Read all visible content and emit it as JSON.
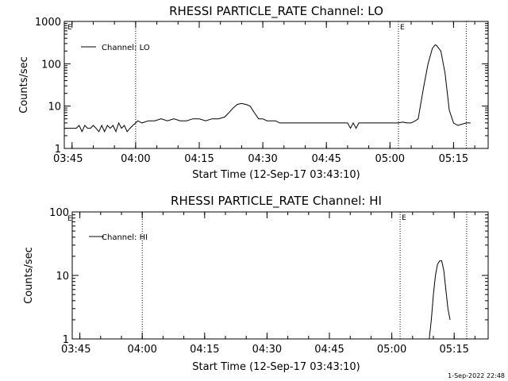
{
  "chart_data": [
    {
      "type": "line",
      "title": "RHESSI PARTICLE_RATE Channel: LO",
      "xlabel": "Start Time (12-Sep-17 03:43:10)",
      "ylabel": "Counts/sec",
      "y_scale": "log",
      "ylim": [
        1,
        1000
      ],
      "xlim": [
        "03:43:10",
        "05:23:10"
      ],
      "x_ticks": [
        "03:45",
        "04:00",
        "04:15",
        "04:30",
        "04:45",
        "05:00",
        "05:15"
      ],
      "y_ticks": [
        "1",
        "10",
        "100",
        "1000"
      ],
      "legend": "top-left",
      "event_markers": [
        {
          "time": "04:00",
          "label": ""
        },
        {
          "time": "05:02",
          "label": "E"
        },
        {
          "time": "05:18",
          "label": ""
        }
      ],
      "corner_label": "E",
      "series": [
        {
          "name": "Channel: LO",
          "x": [
            "03:43:10",
            "03:46",
            "03:46:40",
            "03:47:20",
            "03:48",
            "03:48:40",
            "03:49:20",
            "03:50",
            "03:50:40",
            "03:51:20",
            "03:52",
            "03:52:40",
            "03:53:20",
            "03:54",
            "03:54:40",
            "03:55:20",
            "03:56",
            "03:56:40",
            "03:57:20",
            "03:58",
            "03:58:40",
            "03:59:20",
            "04:00",
            "04:00:30",
            "04:01:30",
            "04:03",
            "04:04:30",
            "04:06",
            "04:07:30",
            "04:09",
            "04:10:30",
            "04:12",
            "04:13:30",
            "04:15",
            "04:16:30",
            "04:18",
            "04:19:30",
            "04:21",
            "04:22",
            "04:23",
            "04:24",
            "04:25",
            "04:26",
            "04:27",
            "04:28",
            "04:29",
            "04:30",
            "04:31",
            "04:32",
            "04:33",
            "04:34",
            "04:35",
            "04:36",
            "04:37",
            "04:38",
            "04:40",
            "04:45",
            "04:50",
            "04:50:40",
            "04:51:20",
            "04:52",
            "04:52:40",
            "04:53:20",
            "04:56",
            "04:58",
            "05:00",
            "05:02",
            "05:03",
            "05:04",
            "05:05",
            "05:06",
            "05:06:40",
            "05:07",
            "05:08",
            "05:09",
            "05:10",
            "05:10:40",
            "05:11",
            "05:12",
            "05:13",
            "05:14",
            "05:15",
            "05:16",
            "05:18",
            "05:19"
          ],
          "values": [
            3,
            3,
            3.5,
            2.5,
            3.5,
            3,
            3,
            3.5,
            3,
            2.5,
            3.5,
            2.5,
            3.5,
            3,
            3.5,
            2.5,
            4,
            3,
            3.5,
            2.5,
            3,
            3.5,
            4,
            4.5,
            4,
            4.5,
            4.5,
            5,
            4.5,
            5,
            4.5,
            4.5,
            5,
            5,
            4.5,
            5,
            5,
            5.5,
            7,
            9,
            11,
            11.5,
            11,
            10,
            7,
            5,
            5,
            4.5,
            4.5,
            4.5,
            4,
            4,
            4,
            4,
            4,
            4,
            4,
            4,
            3,
            4,
            3,
            4,
            4,
            4,
            4,
            4,
            4,
            4.2,
            4,
            4,
            4.5,
            5,
            8,
            30,
            100,
            230,
            280,
            270,
            200,
            60,
            8,
            4,
            3.5,
            4,
            4
          ]
        }
      ]
    },
    {
      "type": "line",
      "title": "RHESSI PARTICLE_RATE Channel: HI",
      "xlabel": "Start Time (12-Sep-17 03:43:10)",
      "ylabel": "Counts/sec",
      "y_scale": "log",
      "ylim": [
        1,
        100
      ],
      "xlim": [
        "03:43:10",
        "05:23:10"
      ],
      "x_ticks": [
        "03:45",
        "04:00",
        "04:15",
        "04:30",
        "04:45",
        "05:00",
        "05:15"
      ],
      "y_ticks": [
        "1",
        "10",
        "100"
      ],
      "legend": "top-left",
      "event_markers": [
        {
          "time": "04:00",
          "label": ""
        },
        {
          "time": "05:02",
          "label": "E"
        },
        {
          "time": "05:18",
          "label": ""
        }
      ],
      "corner_label": "E",
      "series": [
        {
          "name": "Channel: HI",
          "x": [
            "05:09",
            "05:09:30",
            "05:10",
            "05:10:30",
            "05:11",
            "05:11:30",
            "05:12",
            "05:12:30",
            "05:13",
            "05:13:30",
            "05:14"
          ],
          "values": [
            1,
            2,
            5,
            10,
            15,
            17,
            17,
            12,
            6,
            3,
            2
          ]
        }
      ]
    }
  ],
  "footer": {
    "timestamp": "1-Sep-2022 22:48"
  }
}
